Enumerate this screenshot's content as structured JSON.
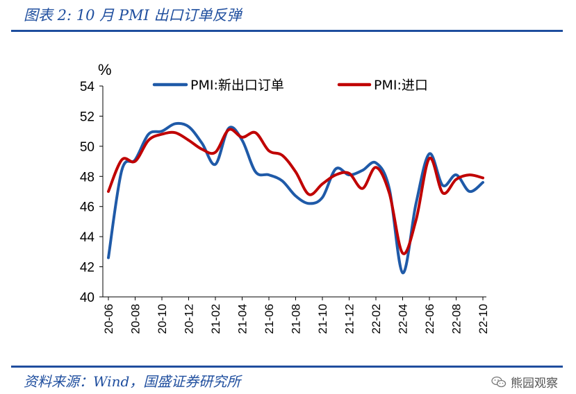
{
  "header": {
    "title": "图表 2:  10 月 PMI 出口订单反弹"
  },
  "footer": {
    "source": "资料来源：Wind，国盛证券研究所",
    "watermark": "熊园观察",
    "watermark_icon": "wechat-icon"
  },
  "colors": {
    "accent": "#1f4e9e",
    "series1": "#1f5aa8",
    "series2": "#c00000"
  },
  "chart_data": {
    "type": "line",
    "title": "",
    "ylabel": "%",
    "xlabel": "",
    "ylim": [
      40,
      54
    ],
    "yticks": [
      40,
      42,
      44,
      46,
      48,
      50,
      52,
      54
    ],
    "x": [
      "20-06",
      "20-07",
      "20-08",
      "20-09",
      "20-10",
      "20-11",
      "20-12",
      "21-01",
      "21-02",
      "21-03",
      "21-04",
      "21-05",
      "21-06",
      "21-07",
      "21-08",
      "21-09",
      "21-10",
      "21-11",
      "21-12",
      "22-01",
      "22-02",
      "22-03",
      "22-04",
      "22-05",
      "22-06",
      "22-07",
      "22-08",
      "22-09",
      "22-10"
    ],
    "xtick_labels": [
      "20-06",
      "20-08",
      "20-10",
      "20-12",
      "21-02",
      "21-04",
      "21-06",
      "21-08",
      "21-10",
      "21-12",
      "22-02",
      "22-04",
      "22-06",
      "22-08",
      "22-10"
    ],
    "series": [
      {
        "name": "PMI:新出口订单",
        "color": "#1f5aa8",
        "values": [
          42.6,
          48.4,
          49.1,
          50.8,
          51.0,
          51.5,
          51.3,
          50.2,
          48.8,
          51.2,
          50.4,
          48.3,
          48.1,
          47.7,
          46.7,
          46.2,
          46.6,
          48.5,
          48.1,
          48.4,
          48.9,
          47.2,
          41.6,
          46.2,
          49.5,
          47.4,
          48.1,
          47.0,
          47.6
        ]
      },
      {
        "name": "PMI:进口",
        "color": "#c00000",
        "values": [
          47.0,
          49.1,
          49.0,
          50.4,
          50.8,
          50.9,
          50.4,
          49.8,
          49.6,
          51.1,
          50.6,
          50.9,
          49.7,
          49.4,
          48.3,
          46.8,
          47.5,
          48.1,
          48.2,
          47.2,
          48.6,
          46.9,
          42.9,
          45.1,
          49.2,
          46.9,
          47.8,
          48.1,
          47.9
        ]
      }
    ],
    "legend_position": "top"
  }
}
